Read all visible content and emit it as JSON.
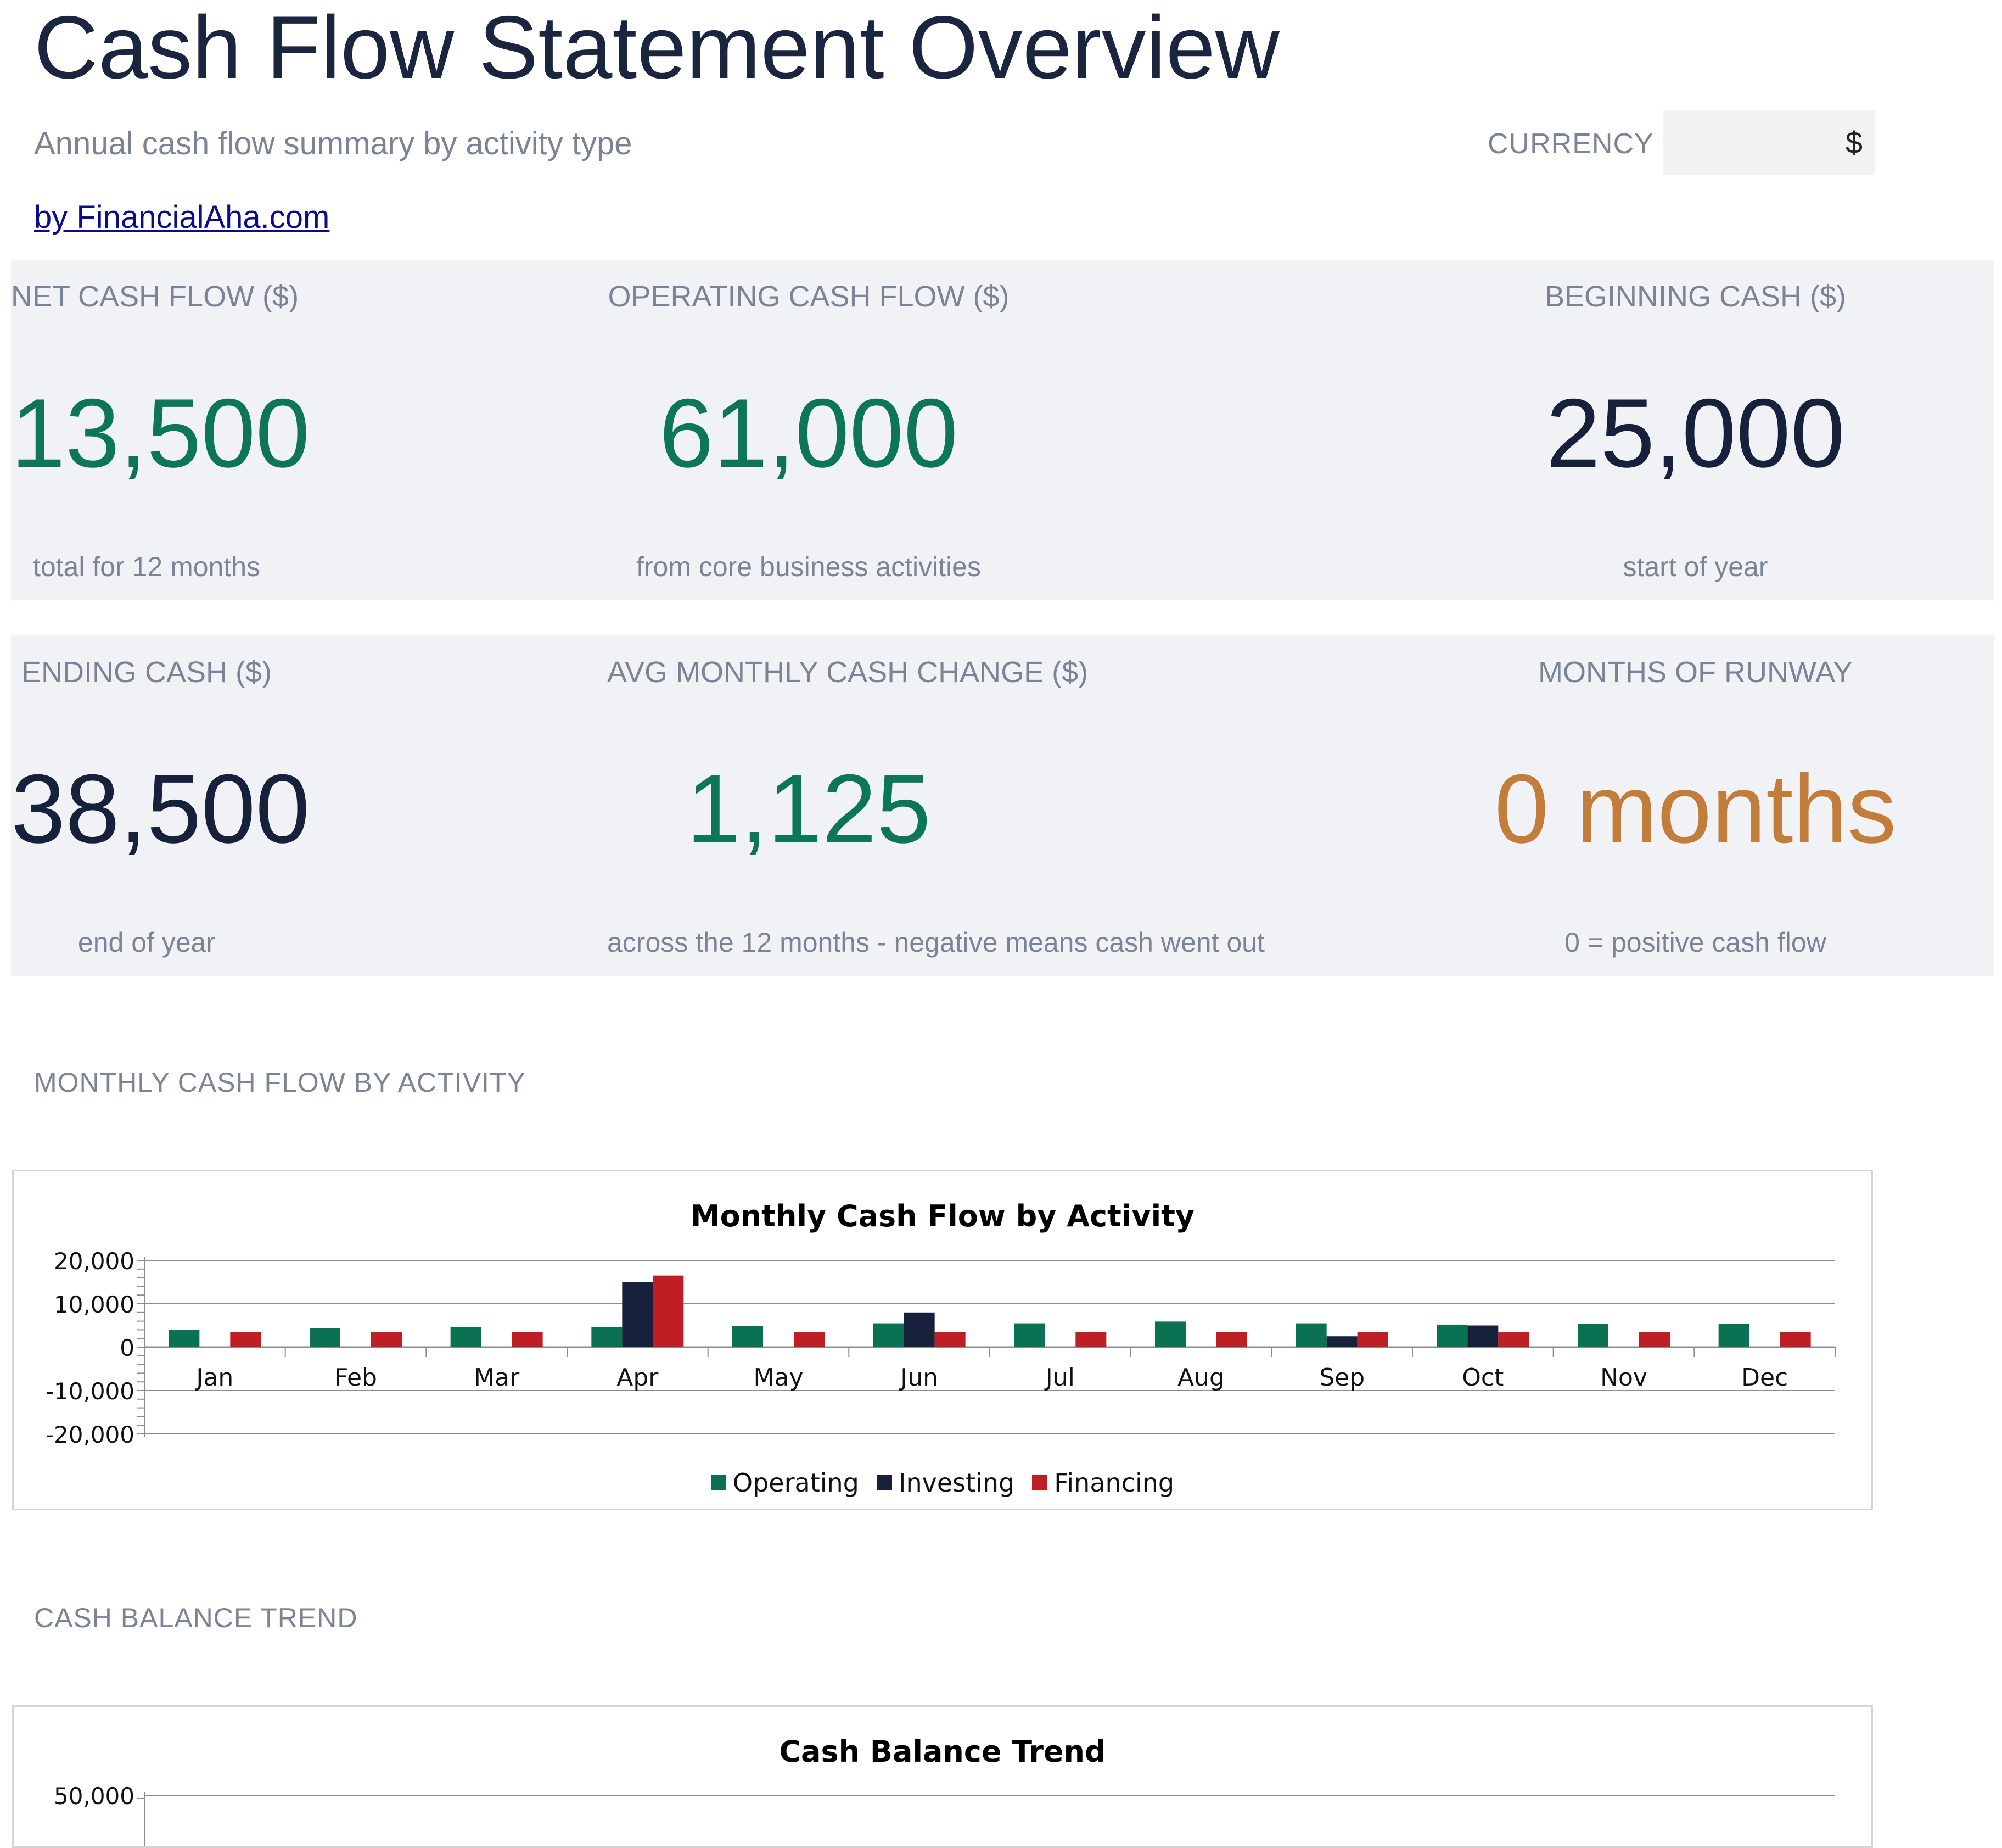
{
  "header": {
    "title": "Cash Flow Statement Overview",
    "subtitle": "Annual cash flow summary by activity type",
    "byline": "by FinancialAha.com",
    "currency_label": "CURRENCY",
    "currency_value": "$"
  },
  "kpis": [
    {
      "label": "NET CASH FLOW ($)",
      "value": "13,500",
      "note": "total for 12 months"
    },
    {
      "label": "OPERATING CASH FLOW ($)",
      "value": "61,000",
      "note": "from core business activities"
    },
    {
      "label": "BEGINNING CASH ($)",
      "value": "25,000",
      "note": "start of year"
    },
    {
      "label": "ENDING CASH ($)",
      "value": "38,500",
      "note": "end of year"
    },
    {
      "label": "AVG MONTHLY CASH CHANGE ($)",
      "value": "1,125",
      "note": "across the 12 months - negative means cash went out"
    },
    {
      "label": "MONTHS OF RUNWAY",
      "value": "0 months",
      "note": "0 = positive cash flow"
    }
  ],
  "colors": {
    "positive": "#0c7656",
    "neutral": "#17213c",
    "warning": "#c27d3a",
    "operating": "#0a7152",
    "investing": "#17213c",
    "financing": "#be1e24"
  },
  "sections": {
    "monthly": "MONTHLY CASH FLOW BY ACTIVITY",
    "balance": "CASH BALANCE TREND"
  },
  "chart_data": [
    {
      "type": "bar",
      "title": "Monthly Cash Flow by Activity",
      "categories": [
        "Jan",
        "Feb",
        "Mar",
        "Apr",
        "May",
        "Jun",
        "Jul",
        "Aug",
        "Sep",
        "Oct",
        "Nov",
        "Dec"
      ],
      "series": [
        {
          "name": "Operating",
          "values": [
            4000,
            4300,
            4600,
            4600,
            4900,
            5500,
            5500,
            5900,
            5500,
            5200,
            5400,
            5400
          ]
        },
        {
          "name": "Investing",
          "values": [
            0,
            0,
            0,
            15000,
            0,
            8000,
            0,
            0,
            2500,
            5000,
            0,
            0
          ]
        },
        {
          "name": "Financing",
          "values": [
            3500,
            3500,
            3500,
            16500,
            3500,
            3500,
            3500,
            3500,
            3500,
            3500,
            3500,
            3500
          ]
        }
      ],
      "ylim": [
        -20000,
        20000
      ],
      "yticks": [
        "20,000",
        "10,000",
        "0",
        "-10,000",
        "-20,000"
      ],
      "ytick_values": [
        20000,
        10000,
        0,
        -10000,
        -20000
      ],
      "grid": true,
      "legend": "bottom"
    },
    {
      "type": "line",
      "title": "Cash Balance Trend",
      "yticks": [
        "50,000"
      ],
      "ytick_values": [
        50000
      ]
    }
  ]
}
